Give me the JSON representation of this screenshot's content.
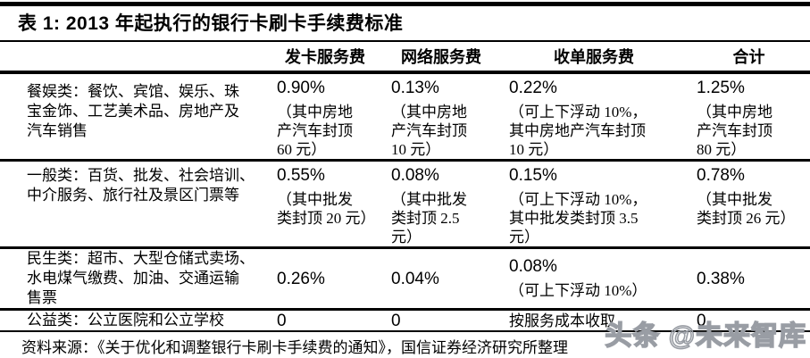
{
  "page": {
    "title": "表 1: 2013 年起执行的银行卡刷卡手续费标准"
  },
  "table": {
    "headers": {
      "category": "",
      "issuing": "发卡服务费",
      "network": "网络服务费",
      "acquiring": "收单服务费",
      "total": "合计"
    },
    "rows": [
      {
        "category": "餐娱类：餐饮、宾馆、娱乐、珠\n宝金饰、工艺美术品、房地产及\n汽车销售",
        "cells": [
          {
            "value": "0.90%",
            "note": "（其中房地\n产汽车封顶\n60 元）"
          },
          {
            "value": "0.13%",
            "note": "（其中房地\n产汽车封顶\n10 元）"
          },
          {
            "value": "0.22%",
            "note": "（可上下浮动 10%，\n其中房地产汽车封顶\n10 元）"
          },
          {
            "value": "1.25%",
            "note": "（其中房地\n产汽车封顶\n80 元）"
          }
        ]
      },
      {
        "category": "一般类：百货、批发、社会培训、\n中介服务、旅行社及景区门票等",
        "cells": [
          {
            "value": "0.55%",
            "note": "（其中批发\n类封顶 20 元）"
          },
          {
            "value": "0.08%",
            "note": "（其中批发\n类封顶 2.5\n元）"
          },
          {
            "value": "0.15%",
            "note": "（可上下浮动 10%，\n其中批发类封顶 3.5\n元）"
          },
          {
            "value": "0.78%",
            "note": "（其中批发\n类封顶 26 元）"
          }
        ]
      },
      {
        "category": "民生类：超市、大型仓储式卖场、\n水电煤气缴费、加油、交通运输\n售票",
        "cells": [
          {
            "value": "0.26%",
            "note": ""
          },
          {
            "value": "0.04%",
            "note": ""
          },
          {
            "value": "0.08%",
            "note": "（可上下浮动 10%）"
          },
          {
            "value": "0.38%",
            "note": ""
          }
        ]
      },
      {
        "category": "公益类：公立医院和公立学校",
        "cells": [
          {
            "value": "0",
            "note": ""
          },
          {
            "value": "0",
            "note": ""
          },
          {
            "value": "按服务成本收取",
            "note": "",
            "is_text": true
          },
          {
            "value": "0",
            "note": ""
          }
        ]
      }
    ]
  },
  "source": "资料来源：《关于优化和调整银行卡刷卡手续费的通知》，国信证券经济研究所整理",
  "watermark": "头条 @未来智库",
  "colors": {
    "text": "#000000",
    "rule": "#000000",
    "watermark_gray": "#9aa0a6",
    "background": "#ffffff"
  }
}
